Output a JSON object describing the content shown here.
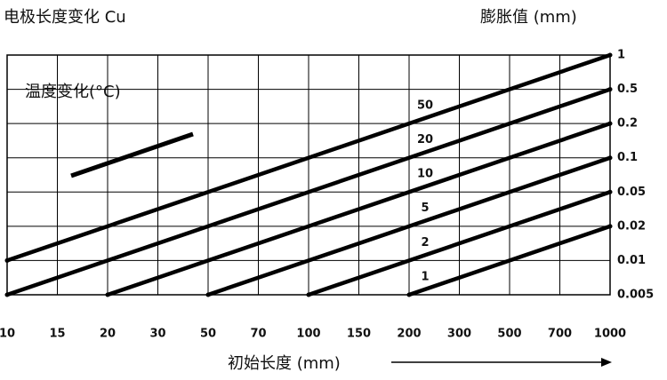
{
  "chart_data": {
    "type": "line",
    "title": "电极长度变化 Cu",
    "y_axis_label": "膨胀值 (mm)",
    "x_axis_label": "初始长度 (mm)",
    "legend_title": "温度变化(°C)",
    "grid": true,
    "color": "#000000",
    "xlim": [
      10,
      1000
    ],
    "ylim": [
      0.005,
      1
    ],
    "xticks": [
      10,
      15,
      20,
      30,
      50,
      70,
      100,
      150,
      200,
      300,
      500,
      700,
      1000
    ],
    "yticks": [
      1,
      0.5,
      0.2,
      0.1,
      0.05,
      0.02,
      0.01,
      0.005
    ],
    "series": [
      {
        "name": "50",
        "x": [
          10,
          1000
        ],
        "values": [
          0.01,
          1
        ]
      },
      {
        "name": "20",
        "x": [
          10,
          1000
        ],
        "values": [
          0.005,
          0.5
        ]
      },
      {
        "name": "10",
        "x": [
          20,
          1000
        ],
        "values": [
          0.005,
          0.2
        ]
      },
      {
        "name": "5",
        "x": [
          50,
          1000
        ],
        "values": [
          0.005,
          0.1
        ]
      },
      {
        "name": "2",
        "x": [
          100,
          1000
        ],
        "values": [
          0.005,
          0.05
        ]
      },
      {
        "name": "1",
        "x": [
          200,
          1000
        ],
        "values": [
          0.005,
          0.02
        ]
      }
    ]
  }
}
